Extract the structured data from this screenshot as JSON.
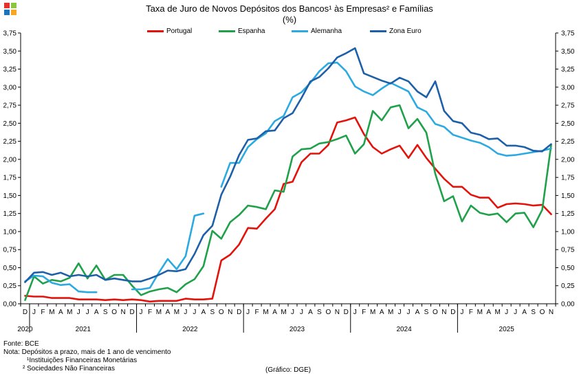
{
  "title_line1": "Taxa de Juro de Novos Depósitos dos Bancos¹ às Empresas² e Famílias",
  "title_line2": "(%)",
  "logo_colors": [
    "#E5332A",
    "#8CC63F",
    "#1B75BC",
    "#F7A823"
  ],
  "notes": {
    "source": "Fonte: BCE",
    "note": "Nota: Depósitos a prazo, mais de 1 ano de vencimento",
    "footnote1": "¹Instituições Financeiras Monetárias",
    "footnote2": "² Sociedades Não Financeiras"
  },
  "credit": "(Gráfico: DGE)",
  "chart_data": {
    "type": "line",
    "title": "Taxa de Juro de Novos Depósitos dos Bancos¹ às Empresas² e Famílias",
    "subtitle": "(%)",
    "ylim": [
      0,
      3.75
    ],
    "yticks": [
      "0,00",
      "0,25",
      "0,50",
      "0,75",
      "1,00",
      "1,25",
      "1,50",
      "1,75",
      "2,00",
      "2,25",
      "2,50",
      "2,75",
      "3,00",
      "3,25",
      "3,50",
      "3,75"
    ],
    "y_axis_both_sides": true,
    "grid": false,
    "legend_position": "top",
    "x_months": [
      "D",
      "J",
      "F",
      "M",
      "A",
      "M",
      "J",
      "J",
      "A",
      "S",
      "O",
      "N",
      "D",
      "J",
      "F",
      "M",
      "A",
      "M",
      "J",
      "J",
      "A",
      "S",
      "O",
      "N",
      "D",
      "J",
      "F",
      "M",
      "A",
      "M",
      "J",
      "J",
      "A",
      "S",
      "O",
      "N",
      "D",
      "J",
      "F",
      "M",
      "A",
      "M",
      "J",
      "J",
      "A",
      "S",
      "O",
      "N",
      "D",
      "J",
      "F",
      "M",
      "A",
      "M",
      "J",
      "J",
      "A",
      "S",
      "O",
      "N"
    ],
    "x_start": "2020-12",
    "years": [
      {
        "label": "2020",
        "start": 0,
        "end": 0
      },
      {
        "label": "2021",
        "start": 1,
        "end": 12
      },
      {
        "label": "2022",
        "start": 13,
        "end": 24
      },
      {
        "label": "2023",
        "start": 25,
        "end": 36
      },
      {
        "label": "2024",
        "start": 37,
        "end": 48
      },
      {
        "label": "2025",
        "start": 49,
        "end": 59
      }
    ],
    "series": [
      {
        "name": "Portugal",
        "color": "#E3120B",
        "values": [
          0.11,
          0.1,
          0.1,
          0.08,
          0.08,
          0.08,
          0.06,
          0.06,
          0.06,
          0.05,
          0.06,
          0.05,
          0.06,
          0.05,
          0.03,
          0.04,
          0.04,
          0.04,
          0.07,
          0.06,
          0.06,
          0.07,
          0.6,
          0.68,
          0.82,
          1.05,
          1.04,
          1.18,
          1.31,
          1.66,
          1.69,
          1.96,
          2.08,
          2.08,
          2.2,
          2.51,
          2.54,
          2.58,
          2.35,
          2.17,
          2.08,
          2.14,
          2.19,
          2.02,
          2.2,
          2.02,
          1.87,
          1.73,
          1.62,
          1.62,
          1.51,
          1.47,
          1.47,
          1.33,
          1.38,
          1.39,
          1.38,
          1.36,
          1.37,
          1.24
        ]
      },
      {
        "name": "Espanha",
        "color": "#1FA14A",
        "values": [
          0.05,
          0.38,
          0.28,
          0.33,
          0.31,
          0.36,
          0.56,
          0.35,
          0.53,
          0.33,
          0.4,
          0.4,
          0.25,
          0.12,
          0.17,
          0.2,
          0.22,
          0.16,
          0.27,
          0.34,
          0.52,
          1.01,
          0.9,
          1.13,
          1.23,
          1.36,
          1.34,
          1.31,
          1.57,
          1.55,
          2.04,
          2.14,
          2.15,
          2.22,
          2.24,
          2.28,
          2.33,
          2.08,
          2.21,
          2.67,
          2.54,
          2.72,
          2.75,
          2.43,
          2.56,
          2.37,
          1.8,
          1.42,
          1.49,
          1.14,
          1.36,
          1.26,
          1.23,
          1.25,
          1.13,
          1.25,
          1.26,
          1.06,
          1.3,
          2.2
        ]
      },
      {
        "name": "Alemanha",
        "color": "#2BAAE2",
        "values": [
          0.31,
          0.39,
          0.38,
          0.29,
          0.26,
          0.27,
          0.17,
          0.16,
          0.16,
          null,
          null,
          null,
          0.2,
          0.2,
          0.22,
          0.43,
          0.62,
          0.48,
          0.66,
          1.22,
          1.25,
          null,
          1.62,
          1.95,
          1.95,
          2.17,
          2.28,
          2.36,
          2.53,
          2.6,
          2.86,
          2.93,
          3.06,
          3.22,
          3.33,
          3.34,
          3.22,
          3.01,
          2.94,
          2.89,
          2.98,
          3.06,
          3.0,
          2.94,
          2.72,
          2.66,
          2.49,
          2.45,
          2.34,
          2.3,
          2.26,
          2.23,
          2.17,
          2.08,
          2.05,
          2.06,
          2.08,
          2.1,
          2.12,
          2.15
        ]
      },
      {
        "name": "Zona Euro",
        "color": "#1D5FA8",
        "values": [
          0.3,
          0.43,
          0.44,
          0.4,
          0.43,
          0.38,
          0.4,
          0.38,
          0.4,
          0.33,
          0.35,
          0.33,
          0.31,
          0.31,
          0.35,
          0.4,
          0.46,
          0.45,
          0.48,
          0.69,
          0.95,
          1.08,
          1.51,
          1.76,
          2.06,
          2.27,
          2.29,
          2.39,
          2.4,
          2.57,
          2.64,
          2.85,
          3.08,
          3.14,
          3.26,
          3.41,
          3.47,
          3.54,
          3.19,
          3.14,
          3.09,
          3.05,
          3.13,
          3.08,
          2.94,
          2.86,
          3.08,
          2.67,
          2.53,
          2.5,
          2.37,
          2.34,
          2.28,
          2.29,
          2.19,
          2.19,
          2.17,
          2.12,
          2.11,
          2.21
        ]
      }
    ]
  }
}
